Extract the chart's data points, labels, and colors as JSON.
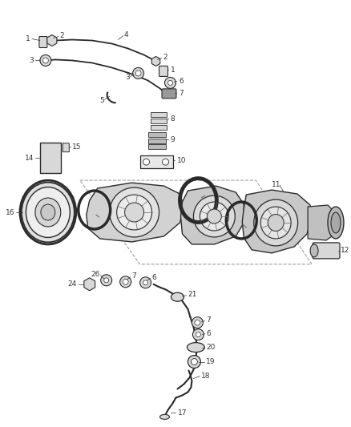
{
  "bg_color": "#ffffff",
  "line_color": "#2a2a2a",
  "label_color": "#333333",
  "gray_dark": "#666666",
  "gray_mid": "#999999",
  "gray_light": "#bbbbbb",
  "gray_lighter": "#d8d8d8",
  "gray_fill": "#e8e8e8",
  "label_fs": 6.5,
  "figw": 4.38,
  "figh": 5.33,
  "dpi": 100
}
